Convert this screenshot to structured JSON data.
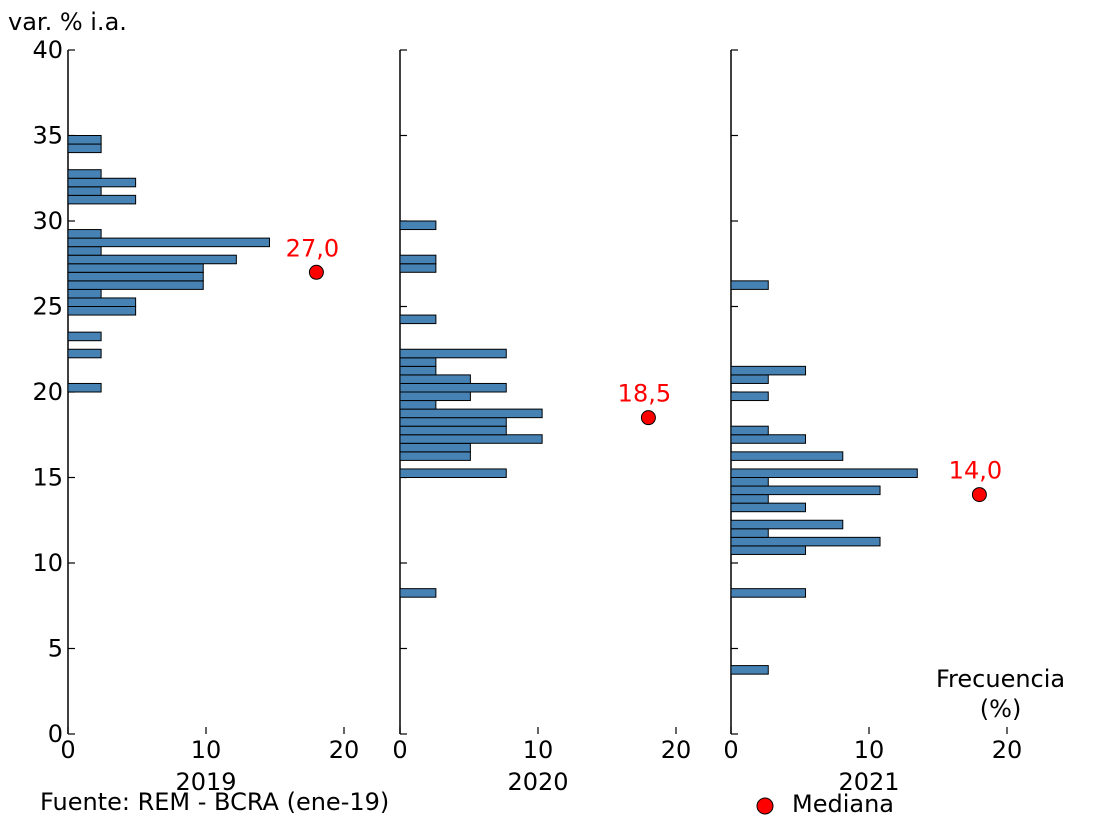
{
  "ylabel": "var. % i.a.",
  "source": "Fuente: REM - BCRA (ene-19)",
  "legend": {
    "label": "Mediana",
    "marker_color": "#ff0000"
  },
  "freq_label": {
    "line1": "Frecuencia",
    "line2": "(%)"
  },
  "colors": {
    "bar_fill": "#4682b4",
    "bar_edge": "#000000",
    "median_color": "#ff0000"
  },
  "chart_data": {
    "type": "bar",
    "orientation": "horizontal",
    "ylim": [
      0,
      40
    ],
    "yticks": [
      0,
      5,
      10,
      15,
      20,
      25,
      30,
      35,
      40
    ],
    "xlim": [
      0,
      20
    ],
    "xticks": [
      0,
      10,
      20
    ],
    "bin_width": 0.5,
    "panels": [
      {
        "title": "2019",
        "median": 27.0,
        "median_label": "27,0",
        "bins": [
          {
            "y": 20.0,
            "v": 2.4
          },
          {
            "y": 22.0,
            "v": 2.4
          },
          {
            "y": 23.0,
            "v": 2.4
          },
          {
            "y": 24.5,
            "v": 4.9
          },
          {
            "y": 25.0,
            "v": 4.9
          },
          {
            "y": 25.5,
            "v": 2.4
          },
          {
            "y": 26.0,
            "v": 9.8
          },
          {
            "y": 26.5,
            "v": 9.8
          },
          {
            "y": 27.0,
            "v": 9.8
          },
          {
            "y": 27.5,
            "v": 12.2
          },
          {
            "y": 28.0,
            "v": 2.4
          },
          {
            "y": 28.5,
            "v": 14.6
          },
          {
            "y": 29.0,
            "v": 2.4
          },
          {
            "y": 31.0,
            "v": 4.9
          },
          {
            "y": 31.5,
            "v": 2.4
          },
          {
            "y": 32.0,
            "v": 4.9
          },
          {
            "y": 32.5,
            "v": 2.4
          },
          {
            "y": 34.0,
            "v": 2.4
          },
          {
            "y": 34.5,
            "v": 2.4
          }
        ]
      },
      {
        "title": "2020",
        "median": 18.5,
        "median_label": "18,5",
        "bins": [
          {
            "y": 8.0,
            "v": 2.6
          },
          {
            "y": 15.0,
            "v": 7.7
          },
          {
            "y": 16.0,
            "v": 5.1
          },
          {
            "y": 16.5,
            "v": 5.1
          },
          {
            "y": 17.0,
            "v": 10.3
          },
          {
            "y": 17.5,
            "v": 7.7
          },
          {
            "y": 18.0,
            "v": 7.7
          },
          {
            "y": 18.5,
            "v": 10.3
          },
          {
            "y": 19.0,
            "v": 2.6
          },
          {
            "y": 19.5,
            "v": 5.1
          },
          {
            "y": 20.0,
            "v": 7.7
          },
          {
            "y": 20.5,
            "v": 5.1
          },
          {
            "y": 21.0,
            "v": 2.6
          },
          {
            "y": 21.5,
            "v": 2.6
          },
          {
            "y": 22.0,
            "v": 7.7
          },
          {
            "y": 24.0,
            "v": 2.6
          },
          {
            "y": 27.0,
            "v": 2.6
          },
          {
            "y": 27.5,
            "v": 2.6
          },
          {
            "y": 29.5,
            "v": 2.6
          }
        ]
      },
      {
        "title": "2021",
        "median": 14.0,
        "median_label": "14,0",
        "bins": [
          {
            "y": 3.5,
            "v": 2.7
          },
          {
            "y": 8.0,
            "v": 5.4
          },
          {
            "y": 10.5,
            "v": 5.4
          },
          {
            "y": 11.0,
            "v": 10.8
          },
          {
            "y": 11.5,
            "v": 2.7
          },
          {
            "y": 12.0,
            "v": 8.1
          },
          {
            "y": 13.0,
            "v": 5.4
          },
          {
            "y": 13.5,
            "v": 2.7
          },
          {
            "y": 14.0,
            "v": 10.8
          },
          {
            "y": 14.5,
            "v": 2.7
          },
          {
            "y": 15.0,
            "v": 13.5
          },
          {
            "y": 16.0,
            "v": 8.1
          },
          {
            "y": 17.0,
            "v": 5.4
          },
          {
            "y": 17.5,
            "v": 2.7
          },
          {
            "y": 19.5,
            "v": 2.7
          },
          {
            "y": 20.5,
            "v": 2.7
          },
          {
            "y": 21.0,
            "v": 5.4
          },
          {
            "y": 26.0,
            "v": 2.7
          }
        ]
      }
    ]
  }
}
